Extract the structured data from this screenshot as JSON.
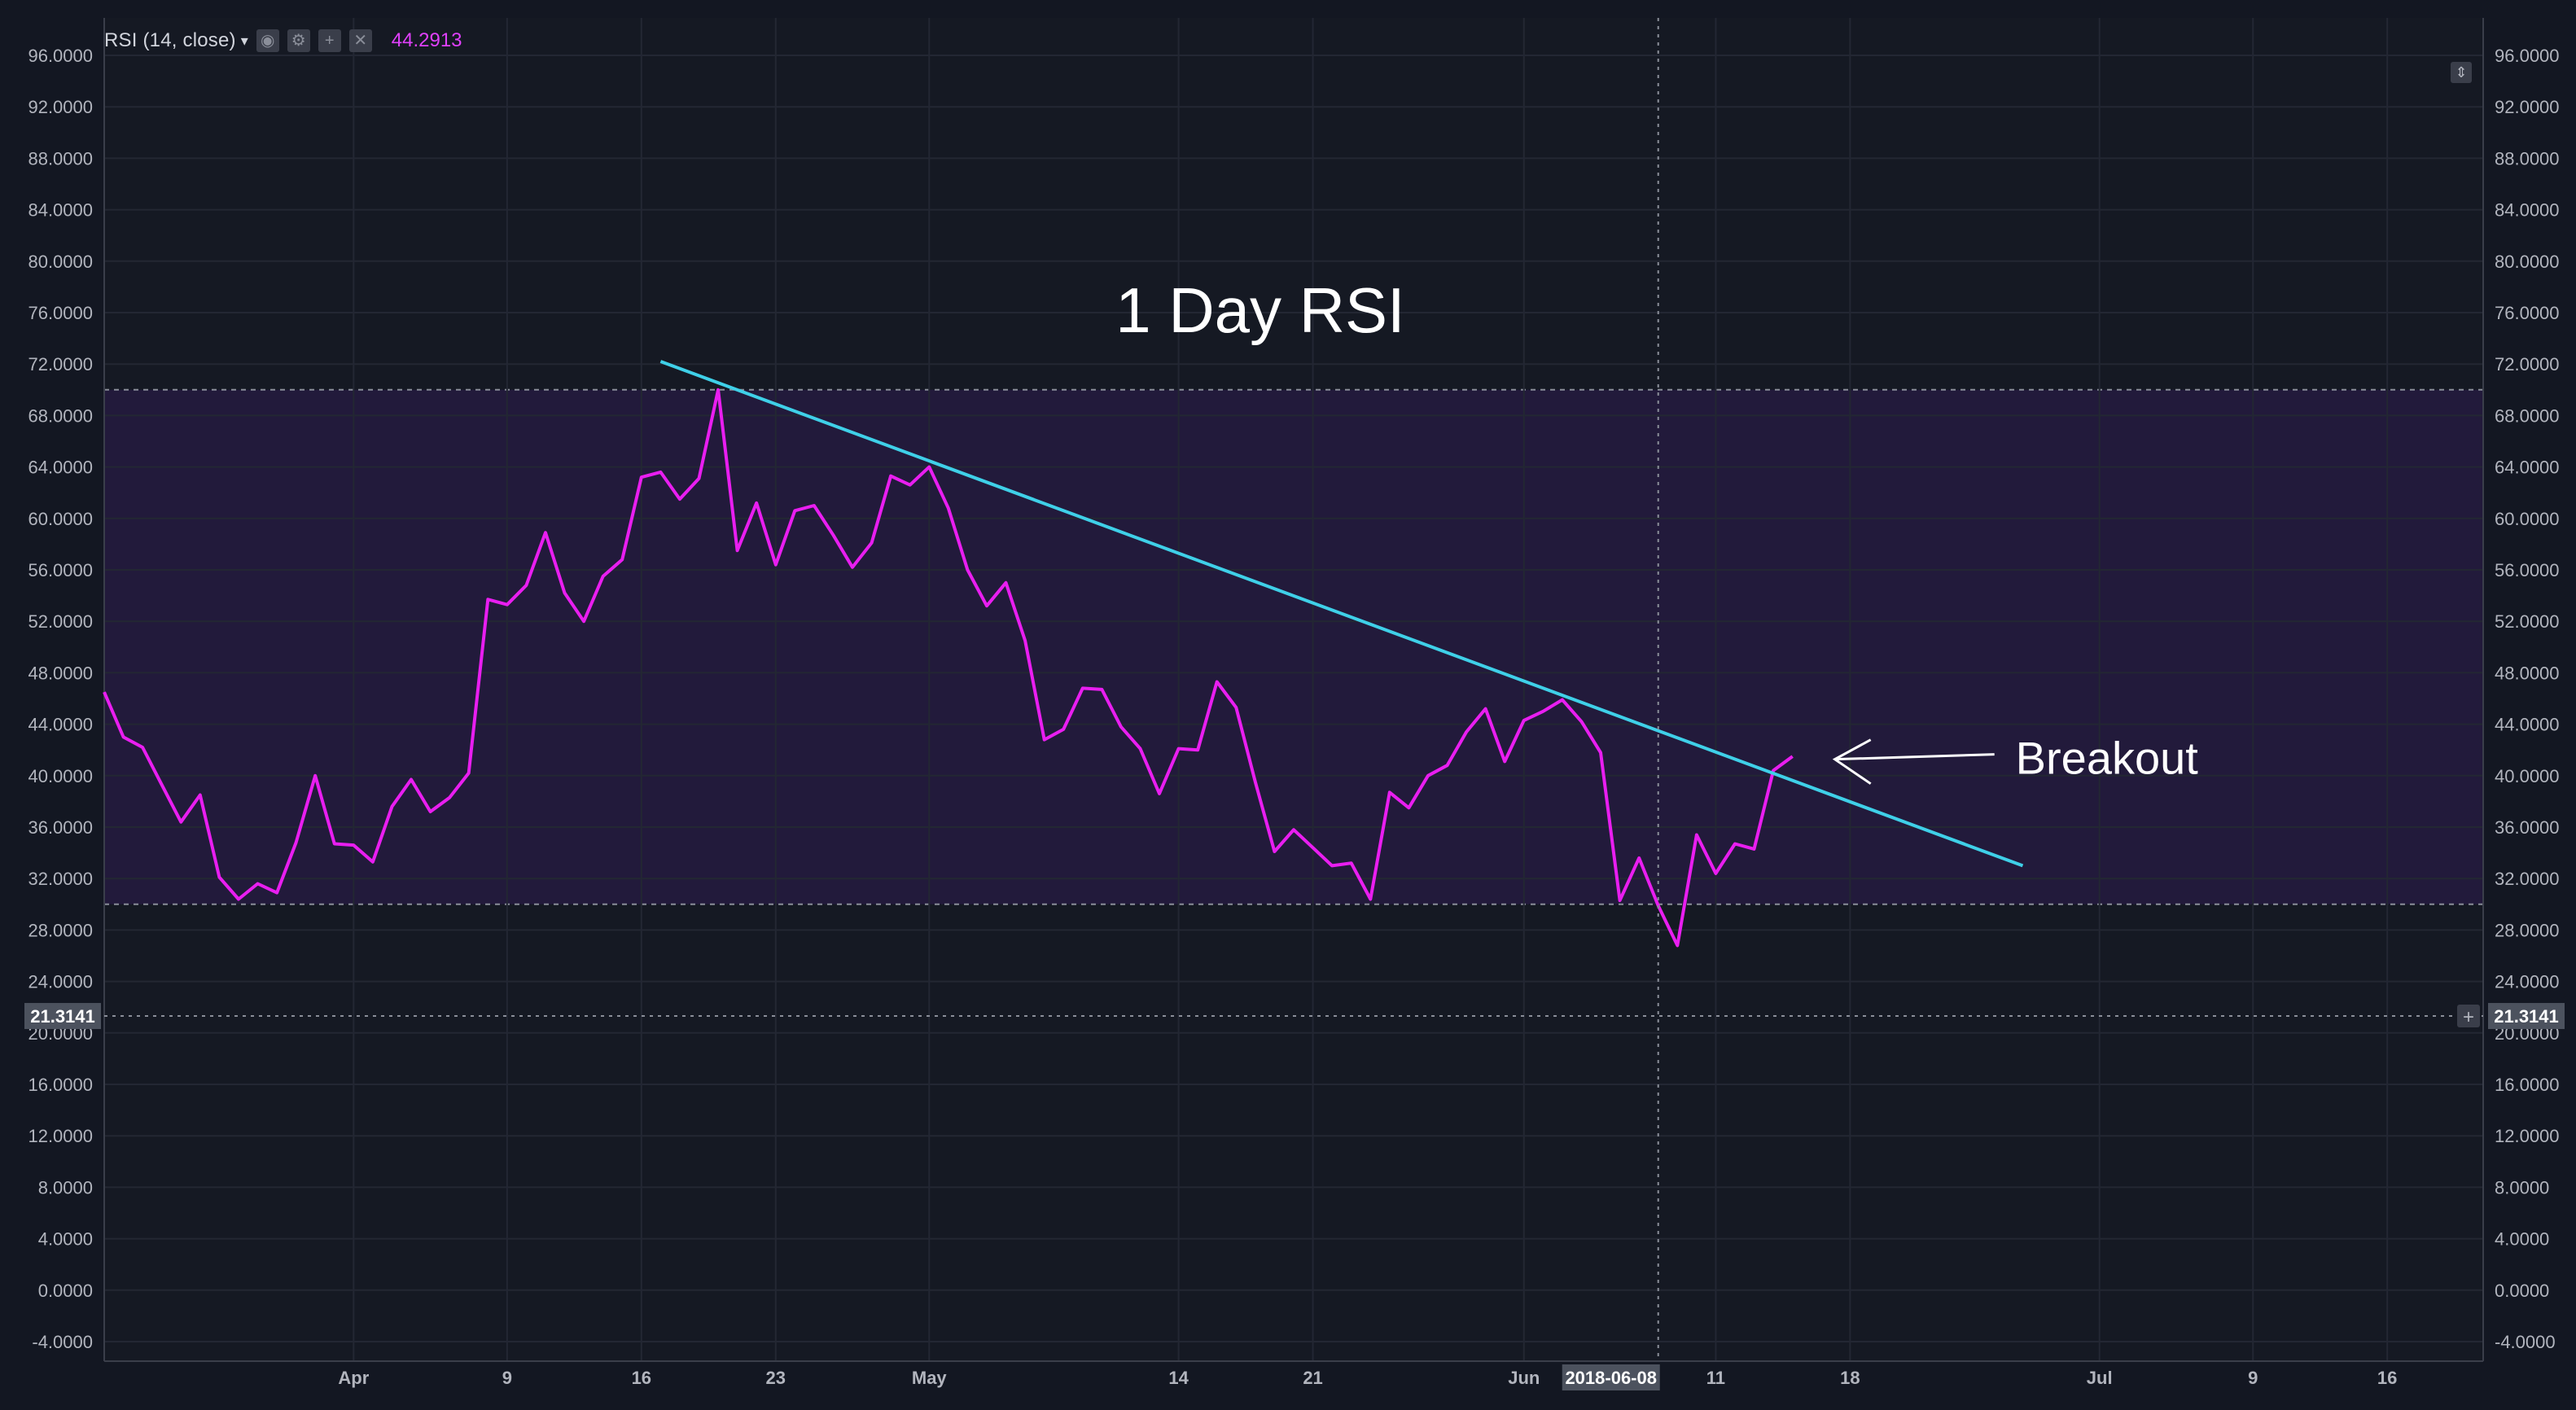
{
  "indicator": {
    "label": "RSI (14, close)",
    "value": "44.2913",
    "value_color": "#e040fb",
    "caret_icon": "caret-down",
    "toolbar_icons": [
      "eye-icon",
      "settings-icon",
      "plus-icon",
      "close-icon"
    ]
  },
  "crosshair": {
    "price_label": "21.3141",
    "date_label": "2018-06-08"
  },
  "colors": {
    "background": "#131722",
    "rsi_line": "#e91ef0",
    "trendline": "#3fd0e8",
    "band_fill": "#7c2ae0",
    "annotation_text": "#ffffff",
    "axis_text": "#b2b5be"
  },
  "chart_data": {
    "type": "line",
    "title": "1 Day RSI",
    "xlabel": "",
    "ylabel": "",
    "ylim": [
      -4,
      96
    ],
    "y_ticks": [
      "96.0000",
      "92.0000",
      "88.0000",
      "84.0000",
      "80.0000",
      "76.0000",
      "72.0000",
      "68.0000",
      "64.0000",
      "60.0000",
      "56.0000",
      "52.0000",
      "48.0000",
      "44.0000",
      "40.0000",
      "36.0000",
      "32.0000",
      "28.0000",
      "24.0000",
      "20.0000",
      "16.0000",
      "12.0000",
      "8.0000",
      "4.0000",
      "0.0000",
      "-4.0000"
    ],
    "x_ticks": [
      {
        "date": "2018-04-01",
        "label": "Apr"
      },
      {
        "date": "2018-04-09",
        "label": "9"
      },
      {
        "date": "2018-04-16",
        "label": "16"
      },
      {
        "date": "2018-04-23",
        "label": "23"
      },
      {
        "date": "2018-05-01",
        "label": "May"
      },
      {
        "date": "2018-05-14",
        "label": "14"
      },
      {
        "date": "2018-05-21",
        "label": "21"
      },
      {
        "date": "2018-06-01",
        "label": "Jun"
      },
      {
        "date": "2018-06-11",
        "label": "11"
      },
      {
        "date": "2018-06-18",
        "label": "18"
      },
      {
        "date": "2018-07-01",
        "label": "Jul"
      },
      {
        "date": "2018-07-09",
        "label": "9"
      },
      {
        "date": "2018-07-16",
        "label": "16"
      }
    ],
    "x_range": [
      "2018-03-19",
      "2018-07-21"
    ],
    "bands": {
      "upper": 70,
      "lower": 30
    },
    "grid": true,
    "series": [
      {
        "values": [
          [
            "2018-03-19",
            46.5
          ],
          [
            "2018-03-20",
            43.0
          ],
          [
            "2018-03-21",
            42.2
          ],
          [
            "2018-03-22",
            39.3
          ],
          [
            "2018-03-23",
            36.4
          ],
          [
            "2018-03-24",
            38.5
          ],
          [
            "2018-03-25",
            32.1
          ],
          [
            "2018-03-26",
            30.4
          ],
          [
            "2018-03-27",
            31.6
          ],
          [
            "2018-03-28",
            30.9
          ],
          [
            "2018-03-29",
            34.8
          ],
          [
            "2018-03-30",
            40.0
          ],
          [
            "2018-03-31",
            34.7
          ],
          [
            "2018-04-01",
            34.6
          ],
          [
            "2018-04-02",
            33.3
          ],
          [
            "2018-04-03",
            37.6
          ],
          [
            "2018-04-04",
            39.7
          ],
          [
            "2018-04-05",
            37.2
          ],
          [
            "2018-04-06",
            38.3
          ],
          [
            "2018-04-07",
            40.2
          ],
          [
            "2018-04-08",
            53.7
          ],
          [
            "2018-04-09",
            53.3
          ],
          [
            "2018-04-10",
            54.8
          ],
          [
            "2018-04-11",
            58.9
          ],
          [
            "2018-04-12",
            54.2
          ],
          [
            "2018-04-13",
            52.0
          ],
          [
            "2018-04-14",
            55.5
          ],
          [
            "2018-04-15",
            56.8
          ],
          [
            "2018-04-16",
            63.2
          ],
          [
            "2018-04-17",
            63.6
          ],
          [
            "2018-04-18",
            61.5
          ],
          [
            "2018-04-19",
            63.1
          ],
          [
            "2018-04-20",
            70.0
          ],
          [
            "2018-04-21",
            57.5
          ],
          [
            "2018-04-22",
            61.2
          ],
          [
            "2018-04-23",
            56.4
          ],
          [
            "2018-04-24",
            60.6
          ],
          [
            "2018-04-25",
            61.0
          ],
          [
            "2018-04-26",
            58.7
          ],
          [
            "2018-04-27",
            56.2
          ],
          [
            "2018-04-28",
            58.1
          ],
          [
            "2018-04-29",
            63.3
          ],
          [
            "2018-04-30",
            62.6
          ],
          [
            "2018-05-01",
            64.0
          ],
          [
            "2018-05-02",
            60.8
          ],
          [
            "2018-05-03",
            56.0
          ],
          [
            "2018-05-04",
            53.2
          ],
          [
            "2018-05-05",
            55.0
          ],
          [
            "2018-05-06",
            50.5
          ],
          [
            "2018-05-07",
            42.8
          ],
          [
            "2018-05-08",
            43.6
          ],
          [
            "2018-05-09",
            46.8
          ],
          [
            "2018-05-10",
            46.7
          ],
          [
            "2018-05-11",
            43.8
          ],
          [
            "2018-05-12",
            42.1
          ],
          [
            "2018-05-13",
            38.6
          ],
          [
            "2018-05-14",
            42.1
          ],
          [
            "2018-05-15",
            42.0
          ],
          [
            "2018-05-16",
            47.3
          ],
          [
            "2018-05-17",
            45.3
          ],
          [
            "2018-05-18",
            39.5
          ],
          [
            "2018-05-19",
            34.1
          ],
          [
            "2018-05-20",
            35.8
          ],
          [
            "2018-05-21",
            34.4
          ],
          [
            "2018-05-22",
            33.0
          ],
          [
            "2018-05-23",
            33.2
          ],
          [
            "2018-05-24",
            30.4
          ],
          [
            "2018-05-25",
            38.7
          ],
          [
            "2018-05-26",
            37.5
          ],
          [
            "2018-05-27",
            40.0
          ],
          [
            "2018-05-28",
            40.8
          ],
          [
            "2018-05-29",
            43.4
          ],
          [
            "2018-05-30",
            45.2
          ],
          [
            "2018-05-31",
            41.1
          ],
          [
            "2018-06-01",
            44.3
          ],
          [
            "2018-06-02",
            45.0
          ],
          [
            "2018-06-03",
            45.9
          ],
          [
            "2018-06-04",
            44.2
          ],
          [
            "2018-06-05",
            41.8
          ],
          [
            "2018-06-06",
            30.3
          ],
          [
            "2018-06-07",
            33.6
          ],
          [
            "2018-06-08",
            29.9
          ],
          [
            "2018-06-09",
            26.8
          ],
          [
            "2018-06-10",
            35.4
          ],
          [
            "2018-06-11",
            32.4
          ],
          [
            "2018-06-12",
            34.7
          ],
          [
            "2018-06-13",
            34.3
          ],
          [
            "2018-06-14",
            40.4
          ],
          [
            "2018-06-15",
            41.5
          ]
        ]
      }
    ],
    "trendline": {
      "start": [
        "2018-04-17",
        72.2
      ],
      "end": [
        "2018-06-27",
        33.0
      ]
    },
    "annotations": [
      {
        "text": "Breakout",
        "arrow_to": [
          "2018-06-15",
          41.4
        ]
      }
    ]
  }
}
